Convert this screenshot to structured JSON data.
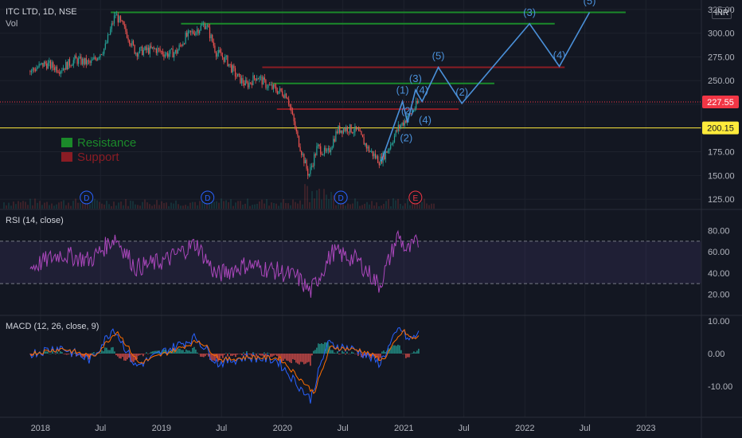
{
  "header": {
    "symbol": "ITC LTD, 1D, NSE",
    "volume_label": "Vol",
    "currency": "INR"
  },
  "price_axis": {
    "ticks": [
      "325.00",
      "300.00",
      "275.00",
      "250.00",
      "225.00",
      "175.00",
      "150.00",
      "125.00"
    ]
  },
  "price_badges": [
    {
      "text": "227.55",
      "value": 227.55,
      "color": "#f23645"
    },
    {
      "text": "200.15",
      "value": 200.15,
      "color": "#ffeb3b"
    }
  ],
  "legend": [
    {
      "text": "Resistance",
      "color": "#1b8a2a"
    },
    {
      "text": "Support",
      "color": "#8a1c24"
    }
  ],
  "time_axis": {
    "labels": [
      "2018",
      "Jul",
      "2019",
      "Jul",
      "2020",
      "Jul",
      "2021",
      "Jul",
      "2022",
      "Jul",
      "2023"
    ]
  },
  "event_markers": [
    {
      "text": "D",
      "color": "#2962ff"
    },
    {
      "text": "D",
      "color": "#2962ff"
    },
    {
      "text": "D",
      "color": "#2962ff"
    },
    {
      "text": "E",
      "color": "#f23645"
    }
  ],
  "rsi": {
    "title": "RSI (14, close)",
    "ticks": [
      "80.00",
      "60.00",
      "40.00",
      "20.00"
    ],
    "upper": 70,
    "lower": 30
  },
  "macd": {
    "title": "MACD (12, 26, close, 9)",
    "ticks": [
      "10.00",
      "0.00",
      "-10.00"
    ]
  },
  "chart_data": {
    "type": "line",
    "title": "ITC LTD, 1D, NSE",
    "price_ylim": [
      115,
      335
    ],
    "price_series": [
      [
        "2017-12-01",
        260
      ],
      [
        "2018-01-15",
        268
      ],
      [
        "2018-03-01",
        262
      ],
      [
        "2018-04-15",
        272
      ],
      [
        "2018-06-01",
        268
      ],
      [
        "2018-07-15",
        285
      ],
      [
        "2018-08-15",
        320
      ],
      [
        "2018-09-15",
        302
      ],
      [
        "2018-10-15",
        280
      ],
      [
        "2018-11-15",
        282
      ],
      [
        "2018-12-15",
        283
      ],
      [
        "2019-01-15",
        278
      ],
      [
        "2019-02-15",
        280
      ],
      [
        "2019-03-15",
        296
      ],
      [
        "2019-04-15",
        303
      ],
      [
        "2019-05-15",
        310
      ],
      [
        "2019-06-15",
        280
      ],
      [
        "2019-07-15",
        272
      ],
      [
        "2019-08-15",
        255
      ],
      [
        "2019-09-15",
        245
      ],
      [
        "2019-10-15",
        255
      ],
      [
        "2019-11-15",
        245
      ],
      [
        "2019-12-15",
        240
      ],
      [
        "2020-01-15",
        235
      ],
      [
        "2020-02-15",
        190
      ],
      [
        "2020-03-20",
        150
      ],
      [
        "2020-04-15",
        180
      ],
      [
        "2020-05-15",
        172
      ],
      [
        "2020-06-15",
        198
      ],
      [
        "2020-07-15",
        200
      ],
      [
        "2020-08-15",
        196
      ],
      [
        "2020-09-15",
        178
      ],
      [
        "2020-10-20",
        165
      ],
      [
        "2020-11-15",
        178
      ],
      [
        "2020-12-15",
        200
      ],
      [
        "2021-01-15",
        212
      ],
      [
        "2021-02-15",
        227.55
      ]
    ],
    "resistance_lines": [
      {
        "value": 322,
        "from": "2018-08-01",
        "to": "2022-11-01"
      },
      {
        "value": 310,
        "from": "2019-03-01",
        "to": "2022-04-01"
      },
      {
        "value": 247,
        "from": "2019-12-01",
        "to": "2021-10-01"
      }
    ],
    "support_lines": [
      {
        "value": 264,
        "from": "2019-11-01",
        "to": "2022-05-01"
      },
      {
        "value": 220,
        "from": "2019-12-15",
        "to": "2021-06-15"
      }
    ],
    "horizontal_levels": [
      {
        "value": 227.55,
        "style": "dotted",
        "color": "#f23645"
      },
      {
        "value": 200.15,
        "style": "solid",
        "color": "#ffeb3b"
      }
    ],
    "elliott_wave_projection": [
      {
        "date": "2020-10-25",
        "value": 165,
        "label": ""
      },
      {
        "date": "2020-12-28",
        "value": 228,
        "label": "(1)"
      },
      {
        "date": "2021-01-12",
        "value": 206,
        "label": "(2)"
      },
      {
        "date": "2021-02-05",
        "value": 240,
        "label": "(3)"
      },
      {
        "date": "2021-02-25",
        "value": 228,
        "label": "(4)"
      },
      {
        "date": "2021-04-15",
        "value": 264,
        "label": "(5)"
      },
      {
        "date": "2021-06-25",
        "value": 226,
        "label": "(2)"
      },
      {
        "date": "2022-01-15",
        "value": 310,
        "label": "(3)"
      },
      {
        "date": "2022-04-15",
        "value": 265,
        "label": "(4)"
      },
      {
        "date": "2022-07-15",
        "value": 322,
        "label": "(5)"
      }
    ],
    "wave_labels_inner": [
      {
        "date": "2020-12-20",
        "value": 186,
        "label": "(2)"
      },
      {
        "date": "2021-02-15",
        "value": 205,
        "label": "(4)"
      }
    ],
    "rsi_series": [
      [
        "2017-12-01",
        45
      ],
      [
        "2018-03-01",
        58
      ],
      [
        "2018-06-01",
        52
      ],
      [
        "2018-08-15",
        74
      ],
      [
        "2018-10-15",
        45
      ],
      [
        "2019-01-15",
        52
      ],
      [
        "2019-04-15",
        68
      ],
      [
        "2019-06-15",
        38
      ],
      [
        "2019-09-15",
        48
      ],
      [
        "2019-12-15",
        42
      ],
      [
        "2020-02-15",
        36
      ],
      [
        "2020-03-25",
        22
      ],
      [
        "2020-06-01",
        60
      ],
      [
        "2020-08-15",
        52
      ],
      [
        "2020-10-20",
        28
      ],
      [
        "2020-12-15",
        76
      ],
      [
        "2021-01-10",
        60
      ],
      [
        "2021-02-15",
        70
      ]
    ],
    "macd_series": [
      [
        "2017-12-01",
        0
      ],
      [
        "2018-03-01",
        2
      ],
      [
        "2018-06-01",
        -2
      ],
      [
        "2018-08-10",
        8
      ],
      [
        "2018-10-15",
        -4
      ],
      [
        "2019-01-15",
        1
      ],
      [
        "2019-04-15",
        5
      ],
      [
        "2019-06-20",
        -3
      ],
      [
        "2019-09-15",
        -1
      ],
      [
        "2019-12-15",
        -2
      ],
      [
        "2020-03-25",
        -14
      ],
      [
        "2020-05-15",
        3
      ],
      [
        "2020-08-15",
        1
      ],
      [
        "2020-10-20",
        -3
      ],
      [
        "2020-12-20",
        8
      ],
      [
        "2021-01-15",
        4
      ],
      [
        "2021-02-15",
        6
      ]
    ],
    "macd_signal": [
      [
        "2017-12-01",
        0
      ],
      [
        "2018-03-10",
        1.5
      ],
      [
        "2018-06-10",
        -1
      ],
      [
        "2018-08-20",
        7
      ],
      [
        "2018-10-25",
        -3
      ],
      [
        "2019-01-25",
        0.5
      ],
      [
        "2019-04-25",
        4
      ],
      [
        "2019-07-01",
        -2
      ],
      [
        "2019-09-25",
        -1
      ],
      [
        "2019-12-25",
        -1.5
      ],
      [
        "2020-04-05",
        -12
      ],
      [
        "2020-05-25",
        2
      ],
      [
        "2020-08-25",
        1
      ],
      [
        "2020-10-30",
        -2
      ],
      [
        "2020-12-30",
        7
      ],
      [
        "2021-01-25",
        4.5
      ],
      [
        "2021-02-15",
        5
      ]
    ],
    "legend": [
      "Resistance",
      "Support"
    ]
  }
}
